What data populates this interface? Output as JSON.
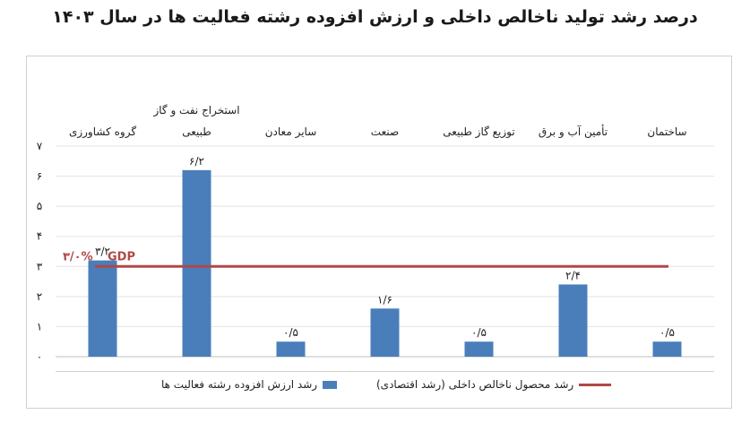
{
  "title": "درصد رشد تولید ناخالص داخلی و ارزش افزوده رشته فعالیت ها در سال ۱۴۰۳",
  "chart_data": {
    "type": "bar",
    "categories": [
      [
        "گروه کشاورزی"
      ],
      [
        "استخراج نفت و گاز",
        "طبیعی"
      ],
      [
        "سایر معادن"
      ],
      [
        "صنعت"
      ],
      [
        "توزیع گاز طبیعی"
      ],
      [
        "تأمین آب و برق"
      ],
      [
        "ساختمان"
      ]
    ],
    "values": [
      3.2,
      6.2,
      0.5,
      1.6,
      0.5,
      2.4,
      0.5
    ],
    "data_labels": [
      "۳/۲",
      "۶/۲",
      "۰/۵",
      "۱/۶",
      "۰/۵",
      "۲/۴",
      "۰/۵"
    ],
    "ylim": [
      0,
      7
    ],
    "yticks": [
      0,
      1,
      2,
      3,
      4,
      5,
      6,
      7
    ],
    "ytick_labels": [
      "۰",
      "۱",
      "۲",
      "۳",
      "۴",
      "۵",
      "۶",
      "۷"
    ],
    "grid": true,
    "bar_color": "#4a7ebb",
    "reference_line": {
      "value": 3.0,
      "label_value": "۳/۰%",
      "label_text": "GDP",
      "color": "#b04848"
    },
    "series": [
      {
        "name": "رشد ارزش افزوده رشته فعالیت ها",
        "kind": "bar",
        "color": "#4a7ebb"
      },
      {
        "name": "رشد محصول ناخالص داخلی (رشد اقتصادی)",
        "kind": "line",
        "color": "#b04848"
      }
    ],
    "legend_position": "bottom"
  }
}
